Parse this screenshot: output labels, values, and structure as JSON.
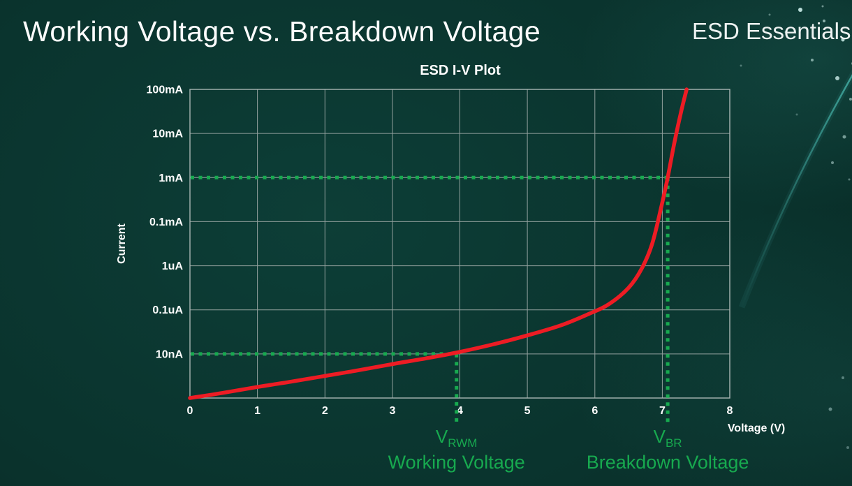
{
  "slide": {
    "title": "Working Voltage vs. Breakdown Voltage",
    "brand": "ESD Essentials"
  },
  "chart_data": {
    "type": "line",
    "title": "ESD I-V Plot",
    "x_axis": {
      "label": "Voltage (V)",
      "min": 0,
      "max": 8,
      "ticks": [
        "0",
        "1",
        "2",
        "3",
        "4",
        "5",
        "6",
        "7",
        "8"
      ]
    },
    "y_axis": {
      "label": "Current",
      "scale": "log-decades",
      "decades": 7,
      "ticks_top_to_bottom": [
        "100mA",
        "10mA",
        "1mA",
        "0.1mA",
        "1uA",
        "0.1uA",
        "10nA"
      ]
    },
    "grid": true,
    "grid_color": "#93a19e",
    "axis_color": "#a9b6b3",
    "series": [
      {
        "name": "ESD I-V curve",
        "color": "#ed1c24",
        "units": "x in volts; y in decades above the bottom axis (each gridline = one labeled decade)",
        "points": [
          [
            0,
            0
          ],
          [
            0.5,
            0.12
          ],
          [
            1,
            0.25
          ],
          [
            1.5,
            0.37
          ],
          [
            2,
            0.5
          ],
          [
            2.5,
            0.63
          ],
          [
            3,
            0.77
          ],
          [
            3.5,
            0.9
          ],
          [
            3.95,
            1.03
          ],
          [
            4.5,
            1.22
          ],
          [
            5,
            1.42
          ],
          [
            5.5,
            1.65
          ],
          [
            5.9,
            1.9
          ],
          [
            6.2,
            2.12
          ],
          [
            6.5,
            2.5
          ],
          [
            6.7,
            2.95
          ],
          [
            6.85,
            3.5
          ],
          [
            6.98,
            4.3
          ],
          [
            7.08,
            5.0
          ],
          [
            7.18,
            5.8
          ],
          [
            7.28,
            6.5
          ],
          [
            7.36,
            7.0
          ]
        ]
      }
    ],
    "annotations": [
      {
        "id": "v-rwm",
        "symbol": "V",
        "subscript": "RWM",
        "caption": "Working Voltage",
        "voltage": 3.95,
        "current_decade": 1,
        "current_label": "10nA",
        "color": "#17a94f",
        "style": "dotted"
      },
      {
        "id": "v-br",
        "symbol": "V",
        "subscript": "BR",
        "caption": "Breakdown Voltage",
        "voltage": 7.08,
        "current_decade": 5,
        "current_label": "1mA",
        "color": "#17a94f",
        "style": "dotted"
      }
    ]
  }
}
